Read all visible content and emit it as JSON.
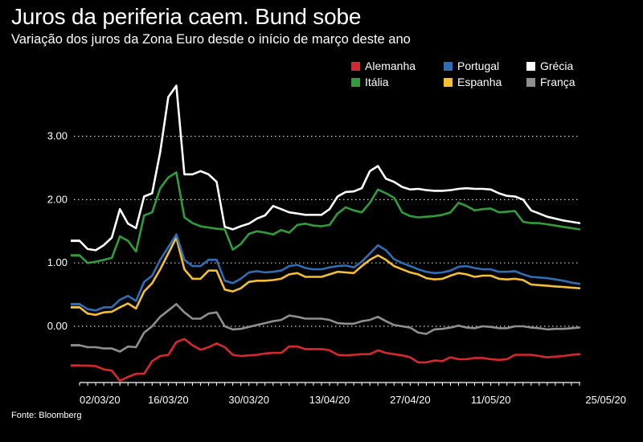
{
  "title": "Juros da periferia caem. Bund sobe",
  "subtitle": "Variação dos juros da Zona Euro desde o início de março deste ano",
  "source": "Fonte: Bloomberg",
  "chart_data": {
    "type": "line",
    "title": "Juros da periferia caem. Bund sobe",
    "subtitle": "Variação dos juros da Zona Euro desde o início de março deste ano",
    "xlabel": "",
    "ylabel": "",
    "ylim": [
      -0.85,
      3.85
    ],
    "yticks": [
      0.0,
      1.0,
      2.0,
      3.0
    ],
    "ytick_labels": [
      "0.00",
      "1.00",
      "2.00",
      "3.00"
    ],
    "xtick_labels": [
      "02/03/20",
      "16/03/20",
      "30/03/20",
      "13/04/20",
      "27/04/20",
      "11/05/20",
      "25/05/20"
    ],
    "xtick_index": [
      1,
      11,
      21,
      31,
      41,
      51,
      61
    ],
    "grid": "horizontal dotted",
    "legend_position": "top-right",
    "series": [
      {
        "name": "Alemanha",
        "color": "#d8282c",
        "values": [
          -0.62,
          -0.62,
          -0.63,
          -0.68,
          -0.7,
          -0.86,
          -0.8,
          -0.75,
          -0.75,
          -0.55,
          -0.47,
          -0.45,
          -0.25,
          -0.2,
          -0.3,
          -0.37,
          -0.33,
          -0.27,
          -0.33,
          -0.45,
          -0.47,
          -0.46,
          -0.45,
          -0.43,
          -0.42,
          -0.42,
          -0.32,
          -0.32,
          -0.36,
          -0.36,
          -0.36,
          -0.38,
          -0.45,
          -0.46,
          -0.45,
          -0.44,
          -0.44,
          -0.38,
          -0.42,
          -0.44,
          -0.46,
          -0.49,
          -0.57,
          -0.57,
          -0.54,
          -0.55,
          -0.49,
          -0.52,
          -0.52,
          -0.5,
          -0.5,
          -0.52,
          -0.53,
          -0.52,
          -0.45,
          -0.45,
          -0.45,
          -0.47,
          -0.49,
          -0.48,
          -0.47,
          -0.45,
          -0.44
        ]
      },
      {
        "name": "Itália",
        "color": "#2f9e3a",
        "values": [
          1.12,
          1.0,
          1.02,
          1.05,
          1.08,
          1.42,
          1.35,
          1.18,
          1.75,
          1.8,
          2.18,
          2.35,
          2.43,
          1.72,
          1.63,
          1.58,
          1.56,
          1.54,
          1.53,
          1.21,
          1.3,
          1.46,
          1.5,
          1.48,
          1.45,
          1.52,
          1.48,
          1.6,
          1.62,
          1.59,
          1.58,
          1.6,
          1.78,
          1.88,
          1.83,
          1.8,
          1.95,
          2.16,
          2.1,
          2.03,
          1.8,
          1.74,
          1.72,
          1.73,
          1.74,
          1.76,
          1.8,
          1.95,
          1.9,
          1.83,
          1.85,
          1.86,
          1.8,
          1.81,
          1.82,
          1.65,
          1.63,
          1.63,
          1.61,
          1.59,
          1.57,
          1.55,
          1.53
        ]
      },
      {
        "name": "Portugal",
        "color": "#2e6eb5",
        "values": [
          0.35,
          0.27,
          0.25,
          0.3,
          0.3,
          0.42,
          0.48,
          0.4,
          0.7,
          0.8,
          1.05,
          1.25,
          1.45,
          1.05,
          0.95,
          0.95,
          1.05,
          1.05,
          0.72,
          0.68,
          0.75,
          0.85,
          0.87,
          0.85,
          0.86,
          0.88,
          0.95,
          0.97,
          0.92,
          0.9,
          0.9,
          0.93,
          0.95,
          0.96,
          0.93,
          1.02,
          1.15,
          1.28,
          1.2,
          1.06,
          1.0,
          0.95,
          0.9,
          0.86,
          0.84,
          0.85,
          0.88,
          0.94,
          0.95,
          0.92,
          0.9,
          0.9,
          0.86,
          0.86,
          0.87,
          0.82,
          0.78,
          0.77,
          0.76,
          0.74,
          0.72,
          0.69,
          0.67
        ]
      },
      {
        "name": "Espanha",
        "color": "#f4bf32",
        "values": [
          0.3,
          0.2,
          0.18,
          0.22,
          0.23,
          0.3,
          0.36,
          0.28,
          0.55,
          0.68,
          0.9,
          1.15,
          1.4,
          0.9,
          0.75,
          0.75,
          0.88,
          0.88,
          0.58,
          0.55,
          0.6,
          0.7,
          0.72,
          0.72,
          0.73,
          0.75,
          0.82,
          0.84,
          0.78,
          0.78,
          0.78,
          0.82,
          0.86,
          0.85,
          0.84,
          0.95,
          1.05,
          1.12,
          1.05,
          0.95,
          0.9,
          0.85,
          0.82,
          0.76,
          0.74,
          0.75,
          0.8,
          0.84,
          0.82,
          0.78,
          0.8,
          0.8,
          0.75,
          0.74,
          0.75,
          0.73,
          0.66,
          0.65,
          0.64,
          0.63,
          0.62,
          0.61,
          0.6
        ]
      },
      {
        "name": "Grécia",
        "color": "#ffffff",
        "values": [
          1.35,
          1.22,
          1.2,
          1.28,
          1.4,
          1.85,
          1.62,
          1.55,
          2.05,
          2.1,
          2.75,
          3.62,
          3.8,
          2.4,
          2.4,
          2.45,
          2.4,
          2.28,
          1.57,
          1.53,
          1.58,
          1.62,
          1.7,
          1.75,
          1.9,
          1.85,
          1.8,
          1.78,
          1.76,
          1.76,
          1.76,
          1.85,
          2.05,
          2.12,
          2.13,
          2.18,
          2.45,
          2.53,
          2.33,
          2.28,
          2.2,
          2.16,
          2.17,
          2.15,
          2.14,
          2.14,
          2.15,
          2.17,
          2.18,
          2.17,
          2.17,
          2.16,
          2.1,
          2.06,
          2.05,
          2.0,
          1.83,
          1.78,
          1.73,
          1.7,
          1.67,
          1.65,
          1.63
        ]
      },
      {
        "name": "França",
        "color": "#8f8f8f",
        "values": [
          -0.3,
          -0.33,
          -0.33,
          -0.35,
          -0.35,
          -0.4,
          -0.32,
          -0.33,
          -0.1,
          0.0,
          0.15,
          0.25,
          0.35,
          0.22,
          0.12,
          0.12,
          0.2,
          0.22,
          0.0,
          -0.05,
          -0.04,
          -0.01,
          0.02,
          0.05,
          0.08,
          0.1,
          0.17,
          0.15,
          0.12,
          0.12,
          0.12,
          0.1,
          0.05,
          0.04,
          0.04,
          0.08,
          0.1,
          0.15,
          0.08,
          0.02,
          0.0,
          -0.02,
          -0.1,
          -0.12,
          -0.05,
          -0.04,
          -0.02,
          0.01,
          -0.02,
          -0.03,
          0.0,
          -0.01,
          -0.03,
          -0.03,
          0.0,
          0.0,
          -0.02,
          -0.03,
          -0.05,
          -0.04,
          -0.04,
          -0.03,
          -0.02
        ]
      }
    ]
  }
}
